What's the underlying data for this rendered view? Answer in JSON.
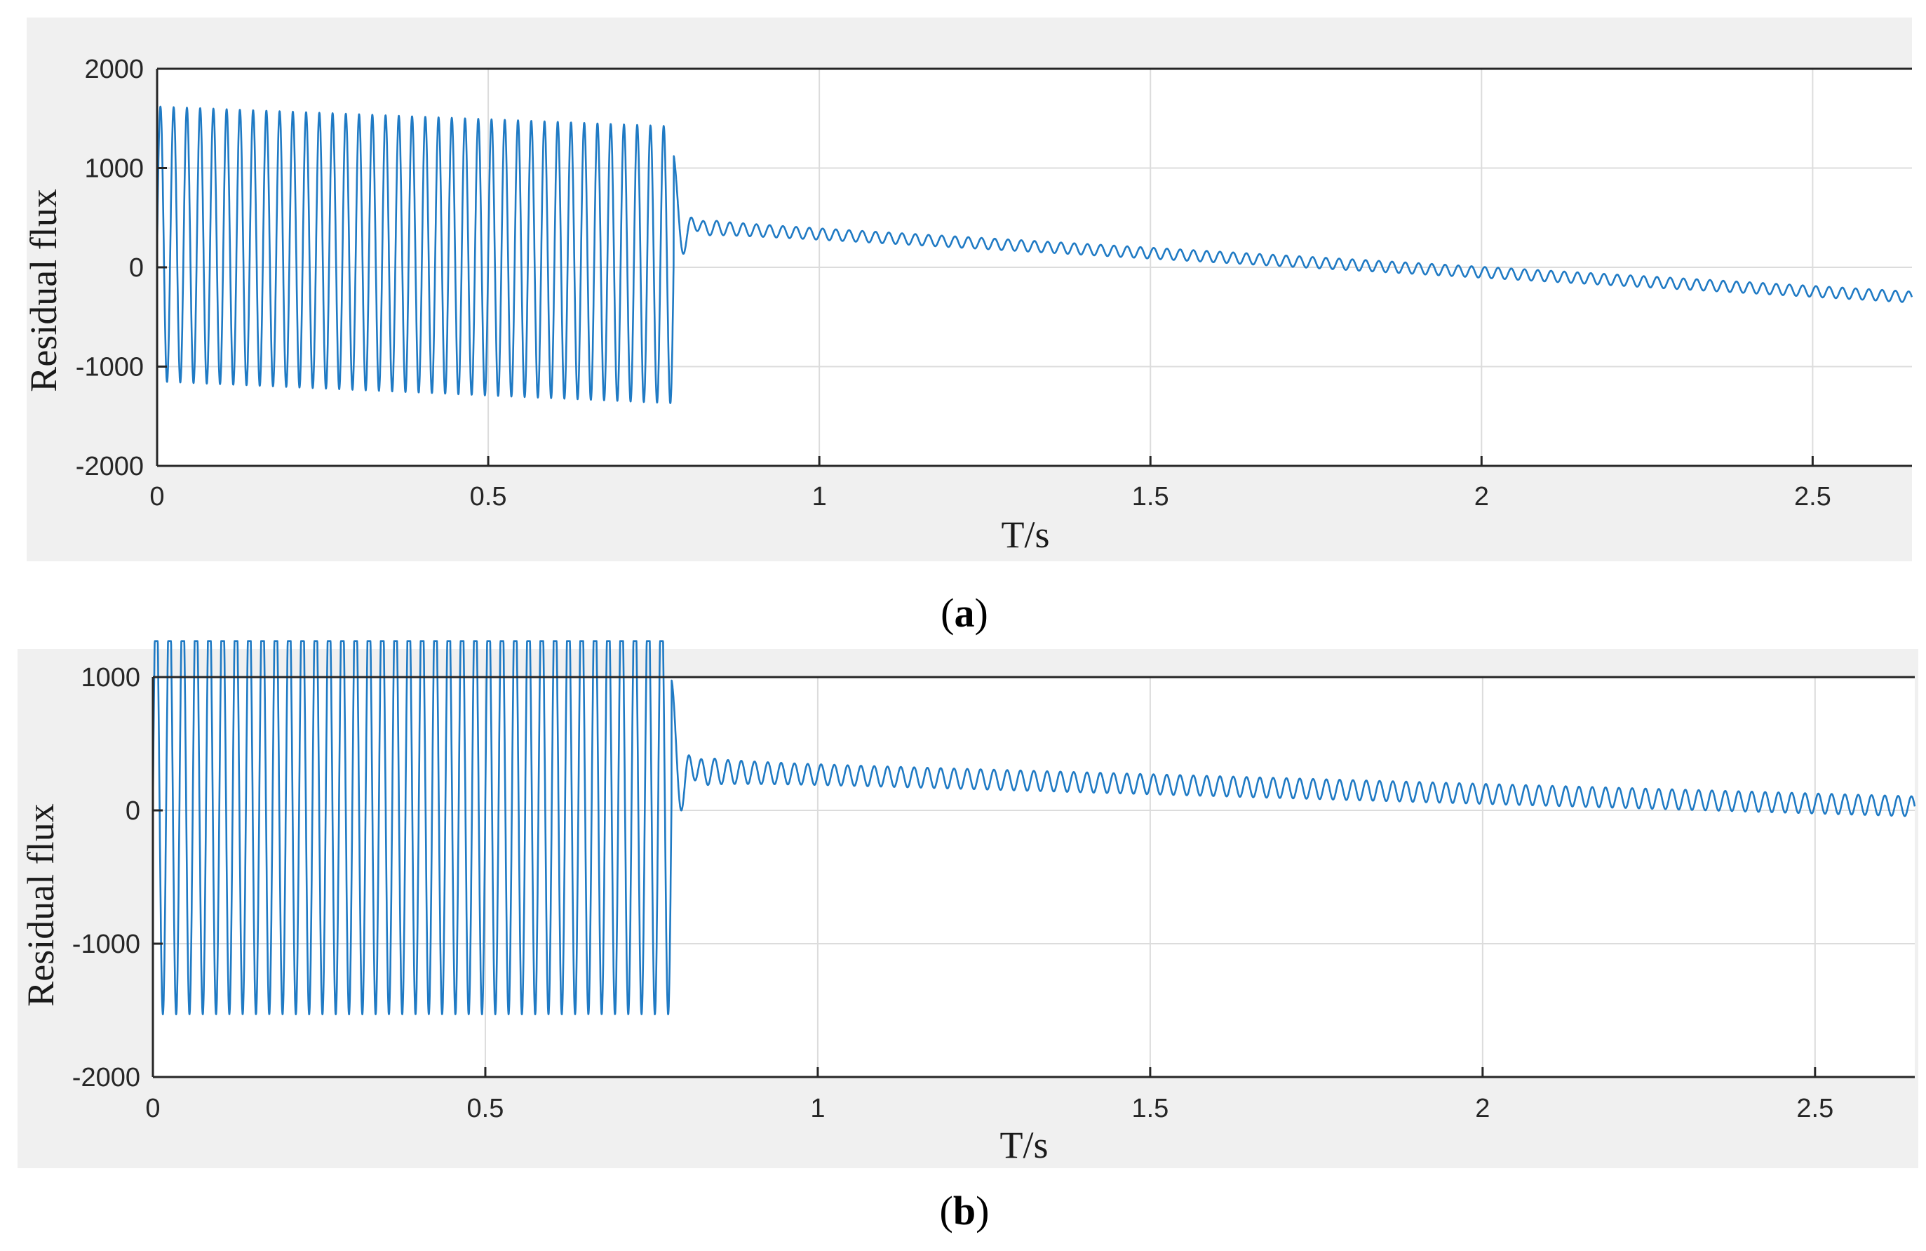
{
  "chart_data": [
    {
      "type": "line",
      "panel": "(a)",
      "caption_letter": "a",
      "xlabel": "T/s",
      "ylabel": "Residual flux",
      "xlim": [
        0,
        2.65
      ],
      "ylim": [
        -2000,
        2000
      ],
      "xticks": [
        0,
        0.5,
        1,
        1.5,
        2,
        2.5
      ],
      "xtick_labels": [
        "0",
        "0.5",
        "1",
        "1.5",
        "2",
        "2.5"
      ],
      "yticks": [
        -2000,
        -1000,
        0,
        1000,
        2000
      ],
      "ytick_labels": [
        "-2000",
        "-1000",
        "0",
        "1000",
        "2000"
      ],
      "grid": true,
      "color": "#1f7ac4",
      "series": [
        {
          "description_values": {
            "oscillation_end_s": 0.78,
            "oscillation_frequency_hz": 50,
            "peak_max_start": 1620,
            "peak_max_end": 1420,
            "peak_min_start": -1150,
            "peak_min_end": -1370,
            "transient_peak": 1130,
            "transient_peak_time_s": 0.79,
            "settled_start_value": 420,
            "settled_end_value": -300,
            "ripple_amplitude": 55
          }
        }
      ]
    },
    {
      "type": "line",
      "panel": "(b)",
      "caption_letter": "b",
      "xlabel": "T/s",
      "ylabel": "Residual flux",
      "xlim": [
        0,
        2.65
      ],
      "ylim": [
        -2000,
        1000
      ],
      "xticks": [
        0,
        0.5,
        1,
        1.5,
        2,
        2.5
      ],
      "xtick_labels": [
        "0",
        "0.5",
        "1",
        "1.5",
        "2",
        "2.5"
      ],
      "yticks": [
        -2000,
        -1000,
        0,
        1000
      ],
      "ytick_labels": [
        "-2000",
        "-1000",
        "0",
        "1000"
      ],
      "grid": true,
      "color": "#1f7ac4",
      "series": [
        {
          "description_values": {
            "oscillation_end_s": 0.78,
            "oscillation_frequency_hz": 50,
            "peak_max_clipped": 1270,
            "peak_min": -1530,
            "transient_peak": 980,
            "transient_peak_time_s": 0.79,
            "settled_start_value": 300,
            "settled_end_value": 30,
            "ripple_amplitude": 75
          }
        }
      ]
    }
  ]
}
